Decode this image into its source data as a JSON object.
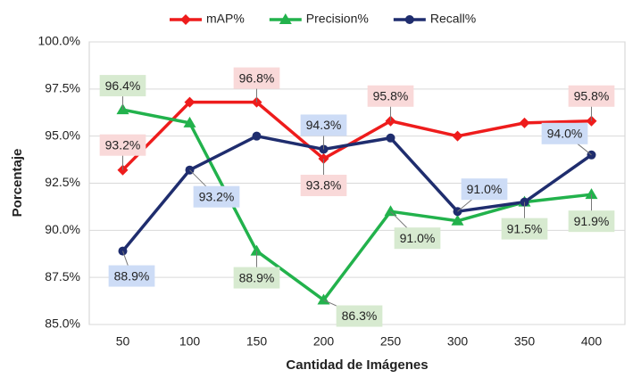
{
  "chart_data": {
    "type": "line",
    "xlabel": "Cantidad de Imágenes",
    "ylabel": "Porcentaje",
    "categories": [
      50,
      100,
      150,
      200,
      250,
      300,
      350,
      400
    ],
    "ylim": [
      85,
      100
    ],
    "yticks": [
      {
        "value": 85,
        "label": "85.0%"
      },
      {
        "value": 87.5,
        "label": "87.5%"
      },
      {
        "value": 90,
        "label": "90.0%"
      },
      {
        "value": 92.5,
        "label": "92.5%"
      },
      {
        "value": 95,
        "label": "95.0%"
      },
      {
        "value": 97.5,
        "label": "97.5%"
      },
      {
        "value": 100,
        "label": "100.0%"
      }
    ],
    "grid": true,
    "legend": "top",
    "series": [
      {
        "name": "mAP%",
        "color": "#ee1c1c",
        "marker": "diamond",
        "label_color": "#f9d9d9",
        "values": [
          93.2,
          96.8,
          96.8,
          93.8,
          95.8,
          95.0,
          95.7,
          95.8
        ],
        "value_labels": [
          "93.2%",
          null,
          "96.8%",
          "93.8%",
          "95.8%",
          null,
          null,
          "95.8%"
        ]
      },
      {
        "name": "Precision%",
        "color": "#22b24c",
        "marker": "triangle",
        "label_color": "#d7ead0",
        "values": [
          96.4,
          95.7,
          88.9,
          86.3,
          91.0,
          90.5,
          91.5,
          91.9
        ],
        "value_labels": [
          "96.4%",
          null,
          "88.9%",
          "86.3%",
          "91.0%",
          null,
          "91.5%",
          "91.9%"
        ]
      },
      {
        "name": "Recall%",
        "color": "#1f2d6e",
        "marker": "circle",
        "label_color": "#cddcf6",
        "values": [
          88.9,
          93.2,
          95.0,
          94.3,
          94.9,
          91.0,
          91.5,
          94.0
        ],
        "value_labels": [
          "88.9%",
          "93.2%",
          null,
          "94.3%",
          null,
          "91.0%",
          null,
          "94.0%"
        ]
      }
    ]
  }
}
